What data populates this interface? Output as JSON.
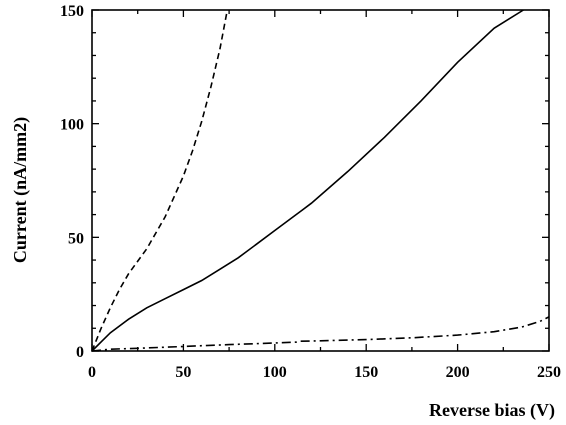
{
  "chart_data": {
    "type": "line",
    "xlabel": "Reverse bias (V)",
    "ylabel": "Current (nA/mm2)",
    "xlim": [
      0,
      250
    ],
    "ylim": [
      0,
      150
    ],
    "xticks": [
      0,
      50,
      100,
      150,
      200,
      250
    ],
    "yticks": [
      0,
      50,
      100,
      150
    ],
    "grid": false,
    "legend": "none",
    "series": [
      {
        "style": "dashed",
        "color": "#000000",
        "x": [
          0,
          5,
          10,
          15,
          20,
          30,
          40,
          50,
          55,
          60,
          65,
          70,
          74
        ],
        "y": [
          0,
          10,
          19,
          27,
          34,
          45,
          59,
          77,
          88,
          101,
          116,
          133,
          150
        ]
      },
      {
        "style": "solid",
        "color": "#000000",
        "x": [
          0,
          5,
          10,
          20,
          30,
          40,
          50,
          60,
          70,
          80,
          90,
          100,
          110,
          115,
          120,
          140,
          160,
          180,
          200,
          220,
          236
        ],
        "y": [
          0,
          4,
          8,
          14,
          19,
          23,
          27,
          31,
          36,
          41,
          47,
          53,
          59,
          62,
          65,
          79,
          94,
          110,
          127,
          142,
          150
        ]
      },
      {
        "style": "dashdot",
        "color": "#000000",
        "x": [
          0,
          10,
          25,
          50,
          75,
          100,
          112,
          114,
          125,
          150,
          175,
          200,
          220,
          235,
          245,
          250
        ],
        "y": [
          0,
          0.8,
          1.2,
          2,
          2.8,
          3.5,
          3.9,
          4.3,
          4.5,
          5,
          5.8,
          7,
          8.5,
          10.5,
          13,
          15
        ]
      }
    ]
  }
}
